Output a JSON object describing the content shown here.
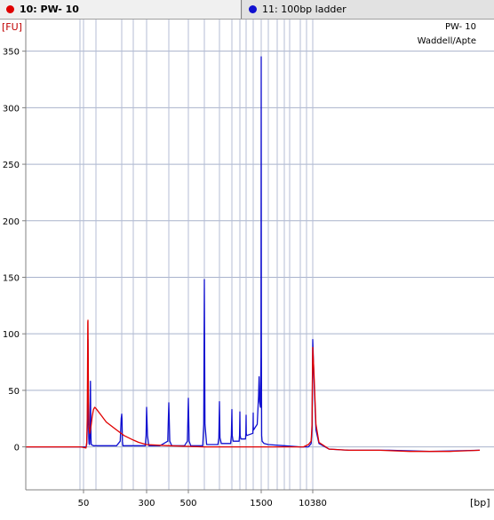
{
  "tabs": [
    {
      "label": "10: PW- 10",
      "color": "#e00000",
      "active": true
    },
    {
      "label": "11: 100bp ladder",
      "color": "#1010d0",
      "active": false
    }
  ],
  "chart_data": {
    "type": "line",
    "title": "PW- 10",
    "subtitle": "Waddell/Apte",
    "ylabel": "[FU]",
    "xlabel": "[bp]",
    "ylim": [
      -38,
      378
    ],
    "y_ticks": [
      0,
      50,
      100,
      150,
      200,
      250,
      300,
      350
    ],
    "x_ticks": [
      {
        "label": "50",
        "t": 50
      },
      {
        "label": "300",
        "t": 300
      },
      {
        "label": "500",
        "t": 500
      },
      {
        "label": "1500",
        "t": 1500
      },
      {
        "label": "10380",
        "t": 10380
      }
    ],
    "ladder_bands_bp": [
      35,
      50,
      100,
      150,
      200,
      300,
      400,
      500,
      600,
      700,
      800,
      900,
      1000,
      1200,
      1500,
      2000,
      2500,
      3000,
      4000,
      5000,
      7000,
      10380
    ],
    "series": [
      {
        "name": "10: PW- 10",
        "color": "#e00000",
        "points": [
          [
            0,
            0
          ],
          [
            40,
            0
          ],
          [
            60,
            -1
          ],
          [
            63,
            4
          ],
          [
            65,
            25
          ],
          [
            66,
            65
          ],
          [
            67,
            110
          ],
          [
            68,
            112
          ],
          [
            69,
            80
          ],
          [
            70,
            40
          ],
          [
            72,
            18
          ],
          [
            75,
            12
          ],
          [
            80,
            18
          ],
          [
            85,
            27
          ],
          [
            90,
            33
          ],
          [
            95,
            35
          ],
          [
            100,
            34
          ],
          [
            110,
            28
          ],
          [
            120,
            22
          ],
          [
            140,
            15
          ],
          [
            160,
            10
          ],
          [
            200,
            6
          ],
          [
            240,
            4
          ],
          [
            300,
            2
          ],
          [
            400,
            1
          ],
          [
            600,
            0
          ],
          [
            800,
            0
          ],
          [
            1000,
            0
          ],
          [
            1500,
            0
          ],
          [
            2000,
            0
          ],
          [
            4000,
            0
          ],
          [
            6000,
            0
          ],
          [
            8000,
            2
          ],
          [
            9500,
            5
          ],
          [
            10000,
            20
          ],
          [
            10200,
            60
          ],
          [
            10380,
            88
          ],
          [
            10500,
            65
          ],
          [
            10700,
            20
          ],
          [
            11000,
            4
          ],
          [
            12000,
            -2
          ],
          [
            14000,
            -3
          ],
          [
            17000,
            -3
          ],
          [
            20000,
            -4
          ],
          [
            24000,
            -4
          ],
          [
            27000,
            -3
          ]
        ]
      },
      {
        "name": "11: 100bp ladder",
        "color": "#1010d0",
        "points": [
          [
            0,
            0
          ],
          [
            40,
            0
          ],
          [
            60,
            0
          ],
          [
            63,
            2
          ],
          [
            65,
            15
          ],
          [
            66,
            22
          ],
          [
            67,
            60
          ],
          [
            68,
            95
          ],
          [
            69,
            55
          ],
          [
            70,
            25
          ],
          [
            71,
            8
          ],
          [
            72,
            3
          ],
          [
            74,
            2
          ],
          [
            75,
            3
          ],
          [
            76,
            15
          ],
          [
            77,
            45
          ],
          [
            78,
            58
          ],
          [
            79,
            30
          ],
          [
            80,
            8
          ],
          [
            81,
            2
          ],
          [
            90,
            1
          ],
          [
            110,
            1
          ],
          [
            140,
            1
          ],
          [
            147,
            5
          ],
          [
            149,
            25
          ],
          [
            150,
            29
          ],
          [
            151,
            25
          ],
          [
            153,
            5
          ],
          [
            155,
            1
          ],
          [
            200,
            1
          ],
          [
            290,
            1
          ],
          [
            296,
            10
          ],
          [
            300,
            35
          ],
          [
            304,
            10
          ],
          [
            310,
            1
          ],
          [
            360,
            1
          ],
          [
            395,
            5
          ],
          [
            400,
            39
          ],
          [
            405,
            5
          ],
          [
            415,
            1
          ],
          [
            480,
            1
          ],
          [
            495,
            5
          ],
          [
            500,
            43
          ],
          [
            505,
            5
          ],
          [
            515,
            1
          ],
          [
            590,
            1
          ],
          [
            596,
            20
          ],
          [
            600,
            148
          ],
          [
            604,
            20
          ],
          [
            615,
            2
          ],
          [
            690,
            2
          ],
          [
            696,
            8
          ],
          [
            700,
            40
          ],
          [
            704,
            8
          ],
          [
            715,
            3
          ],
          [
            790,
            3
          ],
          [
            796,
            10
          ],
          [
            800,
            33
          ],
          [
            804,
            10
          ],
          [
            815,
            5
          ],
          [
            890,
            5
          ],
          [
            896,
            10
          ],
          [
            900,
            31
          ],
          [
            904,
            10
          ],
          [
            915,
            7
          ],
          [
            990,
            7
          ],
          [
            996,
            12
          ],
          [
            1000,
            28
          ],
          [
            1004,
            12
          ],
          [
            1015,
            10
          ],
          [
            1190,
            12
          ],
          [
            1196,
            18
          ],
          [
            1200,
            30
          ],
          [
            1204,
            18
          ],
          [
            1215,
            15
          ],
          [
            1350,
            20
          ],
          [
            1400,
            45
          ],
          [
            1420,
            62
          ],
          [
            1440,
            40
          ],
          [
            1470,
            35
          ],
          [
            1490,
            80
          ],
          [
            1500,
            345
          ],
          [
            1510,
            100
          ],
          [
            1530,
            10
          ],
          [
            1560,
            5
          ],
          [
            1700,
            3
          ],
          [
            2000,
            2
          ],
          [
            3000,
            1
          ],
          [
            5000,
            0
          ],
          [
            8000,
            0
          ],
          [
            9500,
            3
          ],
          [
            10000,
            15
          ],
          [
            10200,
            55
          ],
          [
            10380,
            95
          ],
          [
            10500,
            60
          ],
          [
            10700,
            15
          ],
          [
            11000,
            3
          ],
          [
            12000,
            -2
          ],
          [
            14000,
            -3
          ],
          [
            18000,
            -3
          ],
          [
            22000,
            -4
          ],
          [
            27000,
            -3
          ]
        ]
      }
    ]
  }
}
